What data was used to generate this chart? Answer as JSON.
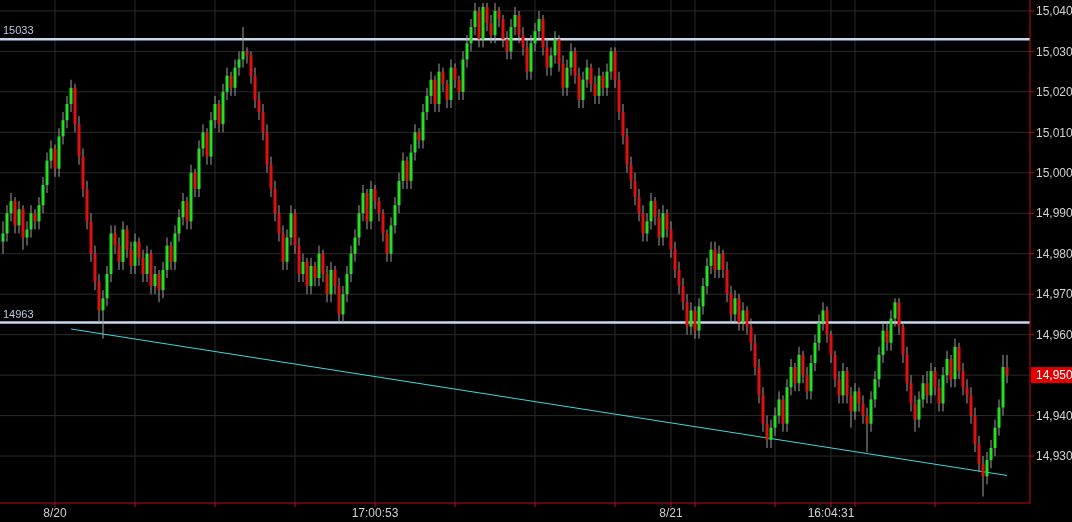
{
  "chart_data": {
    "type": "candlestick",
    "categories": [
      null,
      null,
      null,
      null,
      null,
      null,
      null,
      null,
      null,
      null,
      null,
      null,
      null,
      "8/20",
      null,
      null,
      null,
      null,
      null,
      null,
      null,
      null,
      null,
      null,
      null,
      null,
      null,
      null,
      null,
      null,
      null,
      null,
      null,
      null,
      null,
      null,
      null,
      null,
      null,
      null,
      null,
      null,
      null,
      null,
      null,
      null,
      null,
      null,
      null,
      null,
      null,
      null,
      null,
      null,
      null,
      null,
      null,
      null,
      null,
      null,
      null,
      null,
      null,
      null,
      null,
      null,
      null,
      null,
      null,
      null,
      null,
      null,
      null,
      null,
      null,
      null,
      null,
      null,
      null,
      null,
      null,
      null,
      null,
      null,
      null,
      null,
      null,
      null,
      null,
      null,
      null,
      null,
      null,
      "17:00:53",
      null,
      null,
      null,
      null,
      null,
      null,
      null,
      null,
      null,
      null,
      null,
      null,
      null,
      null,
      null,
      null,
      null,
      null,
      null,
      null,
      null,
      null,
      null,
      null,
      null,
      null,
      null,
      null,
      null,
      null,
      null,
      null,
      null,
      null,
      null,
      null,
      null,
      null,
      null,
      null,
      null,
      null,
      null,
      null,
      null,
      null,
      null,
      null,
      null,
      null,
      null,
      null,
      null,
      null,
      null,
      null,
      null,
      null,
      null,
      null,
      null,
      null,
      null,
      null,
      null,
      null,
      null,
      null,
      null,
      null,
      null,
      null,
      null,
      "8/21",
      null,
      null,
      null,
      null,
      null,
      null,
      null,
      null,
      null,
      null,
      null,
      null,
      null,
      null,
      null,
      null,
      null,
      null,
      null,
      null,
      null,
      null,
      null,
      null,
      null,
      null,
      null,
      null,
      null,
      null,
      null,
      null,
      null,
      null,
      null,
      null,
      null,
      null,
      null,
      "16:04:31",
      null,
      null,
      null,
      null,
      null,
      null,
      null,
      null,
      null,
      null,
      null,
      null,
      null,
      null,
      null,
      null,
      null,
      null,
      null,
      null,
      null,
      null,
      null,
      null,
      null,
      null,
      null,
      null,
      null,
      null,
      null,
      null,
      null,
      null,
      null,
      null,
      null,
      null,
      null,
      null,
      null,
      null,
      null,
      null
    ],
    "ohlc": [
      [
        14983,
        14988,
        14980,
        14985
      ],
      [
        14985,
        14992,
        14983,
        14990
      ],
      [
        14990,
        14995,
        14988,
        14993
      ],
      [
        14993,
        14994,
        14985,
        14987
      ],
      [
        14987,
        14993,
        14985,
        14991
      ],
      [
        14991,
        14992,
        14981,
        14984
      ],
      [
        14984,
        14988,
        14982,
        14986
      ],
      [
        14986,
        14992,
        14984,
        14990
      ],
      [
        14990,
        14991,
        14986,
        14988
      ],
      [
        14988,
        14994,
        14986,
        14992
      ],
      [
        14992,
        14999,
        14990,
        14997
      ],
      [
        14997,
        15005,
        14995,
        15003
      ],
      [
        15003,
        15008,
        15001,
        15006
      ],
      [
        15006,
        15007,
        14999,
        15001
      ],
      [
        15001,
        15011,
        14999,
        15009
      ],
      [
        15009,
        15015,
        15007,
        15013
      ],
      [
        15013,
        15019,
        15011,
        15017
      ],
      [
        15017,
        15023,
        15015,
        15021
      ],
      [
        15021,
        15022,
        15010,
        15012
      ],
      [
        15012,
        15014,
        15002,
        15004
      ],
      [
        15004,
        15006,
        14994,
        14996
      ],
      [
        14996,
        14998,
        14986,
        14988
      ],
      [
        14988,
        14990,
        14978,
        14980
      ],
      [
        14980,
        14982,
        14971,
        14973
      ],
      [
        14973,
        14975,
        14963,
        14966
      ],
      [
        14966,
        14971,
        14959,
        14969
      ],
      [
        14969,
        14977,
        14967,
        14975
      ],
      [
        14975,
        14987,
        14973,
        14985
      ],
      [
        14985,
        14987,
        14980,
        14982
      ],
      [
        14982,
        14984,
        14976,
        14978
      ],
      [
        14978,
        14988,
        14976,
        14986
      ],
      [
        14986,
        14987,
        14979,
        14981
      ],
      [
        14981,
        14983,
        14975,
        14977
      ],
      [
        14977,
        14985,
        14975,
        14983
      ],
      [
        14983,
        14984,
        14977,
        14979
      ],
      [
        14979,
        14981,
        14973,
        14975
      ],
      [
        14975,
        14982,
        14973,
        14980
      ],
      [
        14980,
        14981,
        14970,
        14972
      ],
      [
        14972,
        14977,
        14970,
        14975
      ],
      [
        14975,
        14976,
        14968,
        14971
      ],
      [
        14971,
        14978,
        14969,
        14976
      ],
      [
        14976,
        14984,
        14974,
        14982
      ],
      [
        14982,
        14983,
        14976,
        14978
      ],
      [
        14978,
        14987,
        14976,
        14985
      ],
      [
        14985,
        14991,
        14983,
        14989
      ],
      [
        14989,
        14995,
        14987,
        14993
      ],
      [
        14993,
        14994,
        14986,
        14988
      ],
      [
        14988,
        15002,
        14986,
        15000
      ],
      [
        15000,
        15001,
        14994,
        14996
      ],
      [
        14996,
        15008,
        14994,
        15006
      ],
      [
        15006,
        15012,
        15004,
        15010
      ],
      [
        15010,
        15011,
        15002,
        15004
      ],
      [
        15004,
        15015,
        15002,
        15013
      ],
      [
        15013,
        15019,
        15011,
        15017
      ],
      [
        15017,
        15018,
        15010,
        15012
      ],
      [
        15012,
        15022,
        15010,
        15020
      ],
      [
        15020,
        15026,
        15018,
        15024
      ],
      [
        15024,
        15025,
        15019,
        15021
      ],
      [
        15021,
        15028,
        15019,
        15026
      ],
      [
        15026,
        15030,
        15024,
        15028
      ],
      [
        15028,
        15036,
        15026,
        15030
      ],
      [
        15030,
        15031,
        15027,
        15029
      ],
      [
        15029,
        15030,
        15022,
        15024
      ],
      [
        15024,
        15026,
        15016,
        15018
      ],
      [
        15018,
        15020,
        15013,
        15015
      ],
      [
        15015,
        15017,
        15008,
        15010
      ],
      [
        15010,
        15012,
        15000,
        15002
      ],
      [
        15002,
        15004,
        14994,
        14996
      ],
      [
        14996,
        14998,
        14988,
        14990
      ],
      [
        14990,
        14992,
        14983,
        14985
      ],
      [
        14985,
        14987,
        14976,
        14978
      ],
      [
        14978,
        14986,
        14976,
        14984
      ],
      [
        14984,
        14992,
        14982,
        14990
      ],
      [
        14990,
        14991,
        14980,
        14982
      ],
      [
        14982,
        14984,
        14973,
        14975
      ],
      [
        14975,
        14980,
        14973,
        14978
      ],
      [
        14978,
        14979,
        14970,
        14972
      ],
      [
        14972,
        14979,
        14970,
        14977
      ],
      [
        14977,
        14978,
        14972,
        14974
      ],
      [
        14974,
        14982,
        14972,
        14980
      ],
      [
        14980,
        14981,
        14973,
        14975
      ],
      [
        14975,
        14977,
        14968,
        14970
      ],
      [
        14970,
        14978,
        14968,
        14976
      ],
      [
        14976,
        14977,
        14970,
        14972
      ],
      [
        14972,
        14974,
        14963,
        14965
      ],
      [
        14965,
        14972,
        14963,
        14970
      ],
      [
        14970,
        14977,
        14968,
        14975
      ],
      [
        14975,
        14982,
        14973,
        14980
      ],
      [
        14980,
        14986,
        14978,
        14984
      ],
      [
        14984,
        14992,
        14982,
        14990
      ],
      [
        14990,
        14997,
        14988,
        14995
      ],
      [
        14995,
        14996,
        14986,
        14988
      ],
      [
        14988,
        14998,
        14986,
        14996
      ],
      [
        14996,
        14997,
        14991,
        14993
      ],
      [
        14993,
        14994,
        14988,
        14990
      ],
      [
        14990,
        14991,
        14983,
        14985
      ],
      [
        14985,
        14986,
        14978,
        14980
      ],
      [
        14980,
        14989,
        14978,
        14987
      ],
      [
        14987,
        14994,
        14985,
        14992
      ],
      [
        14992,
        15000,
        14990,
        14998
      ],
      [
        14998,
        15005,
        14996,
        15003
      ],
      [
        15003,
        15004,
        14996,
        14998
      ],
      [
        14998,
        15007,
        14996,
        15005
      ],
      [
        15005,
        15012,
        15003,
        15010
      ],
      [
        15010,
        15011,
        15006,
        15008
      ],
      [
        15008,
        15017,
        15006,
        15015
      ],
      [
        15015,
        15021,
        15013,
        15019
      ],
      [
        15019,
        15025,
        15017,
        15023
      ],
      [
        15023,
        15024,
        15015,
        15017
      ],
      [
        15017,
        15027,
        15015,
        15025
      ],
      [
        15025,
        15026,
        15020,
        15022
      ],
      [
        15022,
        15023,
        15016,
        15018
      ],
      [
        15018,
        15028,
        15016,
        15026
      ],
      [
        15026,
        15027,
        15021,
        15023
      ],
      [
        15023,
        15024,
        15018,
        15020
      ],
      [
        15020,
        15030,
        15018,
        15028
      ],
      [
        15028,
        15034,
        15026,
        15032
      ],
      [
        15032,
        15038,
        15030,
        15036
      ],
      [
        15036,
        15042,
        15034,
        15040
      ],
      [
        15040,
        15041,
        15031,
        15033
      ],
      [
        15033,
        15042,
        15031,
        15041
      ],
      [
        15041,
        15042,
        15035,
        15037
      ],
      [
        15037,
        15039,
        15032,
        15034
      ],
      [
        15034,
        15042,
        15032,
        15040
      ],
      [
        15040,
        15041,
        15036,
        15038
      ],
      [
        15038,
        15039,
        15031,
        15033
      ],
      [
        15033,
        15035,
        15028,
        15030
      ],
      [
        15030,
        15038,
        15028,
        15036
      ],
      [
        15036,
        15041,
        15034,
        15039
      ],
      [
        15039,
        15040,
        15032,
        15034
      ],
      [
        15034,
        15036,
        15029,
        15031
      ],
      [
        15031,
        15033,
        15023,
        15025
      ],
      [
        15025,
        15034,
        15023,
        15032
      ],
      [
        15032,
        15037,
        15030,
        15035
      ],
      [
        15035,
        15040,
        15033,
        15038
      ],
      [
        15038,
        15039,
        15029,
        15031
      ],
      [
        15031,
        15033,
        15024,
        15026
      ],
      [
        15026,
        15031,
        15024,
        15029
      ],
      [
        15029,
        15035,
        15027,
        15033
      ],
      [
        15033,
        15034,
        15025,
        15027
      ],
      [
        15027,
        15029,
        15019,
        15021
      ],
      [
        15021,
        15028,
        15019,
        15026
      ],
      [
        15026,
        15032,
        15024,
        15030
      ],
      [
        15030,
        15031,
        15022,
        15024
      ],
      [
        15024,
        15026,
        15016,
        15018
      ],
      [
        15018,
        15025,
        15016,
        15023
      ],
      [
        15023,
        15028,
        15021,
        15026
      ],
      [
        15026,
        15027,
        15020,
        15022
      ],
      [
        15022,
        15024,
        15017,
        15019
      ],
      [
        15019,
        15026,
        15017,
        15024
      ],
      [
        15024,
        15025,
        15019,
        15021
      ],
      [
        15021,
        15027,
        15019,
        15025
      ],
      [
        15025,
        15031,
        15023,
        15030
      ],
      [
        15030,
        15031,
        15021,
        15023
      ],
      [
        15023,
        15025,
        15013,
        15015
      ],
      [
        15015,
        15017,
        15007,
        15009
      ],
      [
        15009,
        15011,
        15000,
        15002
      ],
      [
        15002,
        15004,
        14996,
        14998
      ],
      [
        14998,
        15000,
        14992,
        14994
      ],
      [
        14994,
        14996,
        14988,
        14990
      ],
      [
        14990,
        14992,
        14983,
        14985
      ],
      [
        14985,
        14990,
        14983,
        14988
      ],
      [
        14988,
        14995,
        14986,
        14993
      ],
      [
        14993,
        14994,
        14987,
        14989
      ],
      [
        14989,
        14991,
        14982,
        14984
      ],
      [
        14984,
        14992,
        14982,
        14990
      ],
      [
        14990,
        14991,
        14984,
        14986
      ],
      [
        14986,
        14988,
        14979,
        14981
      ],
      [
        14981,
        14983,
        14974,
        14976
      ],
      [
        14976,
        14978,
        14970,
        14972
      ],
      [
        14972,
        14974,
        14966,
        14968
      ],
      [
        14968,
        14970,
        14960,
        14962
      ],
      [
        14962,
        14968,
        14960,
        14966
      ],
      [
        14966,
        14967,
        14959,
        14961
      ],
      [
        14961,
        14969,
        14959,
        14967
      ],
      [
        14967,
        14974,
        14965,
        14972
      ],
      [
        14972,
        14979,
        14970,
        14977
      ],
      [
        14977,
        14983,
        14975,
        14981
      ],
      [
        14981,
        14983,
        14974,
        14976
      ],
      [
        14976,
        14982,
        14974,
        14980
      ],
      [
        14980,
        14981,
        14974,
        14976
      ],
      [
        14976,
        14978,
        14968,
        14970
      ],
      [
        14970,
        14972,
        14963,
        14965
      ],
      [
        14965,
        14971,
        14963,
        14969
      ],
      [
        14969,
        14970,
        14961,
        14963
      ],
      [
        14963,
        14968,
        14961,
        14966
      ],
      [
        14966,
        14967,
        14960,
        14962
      ],
      [
        14962,
        14964,
        14956,
        14958
      ],
      [
        14958,
        14960,
        14950,
        14952
      ],
      [
        14952,
        14954,
        14943,
        14945
      ],
      [
        14945,
        14947,
        14936,
        14938
      ],
      [
        14938,
        14940,
        14932,
        14934
      ],
      [
        14934,
        14939,
        14932,
        14937
      ],
      [
        14937,
        14942,
        14935,
        14940
      ],
      [
        14940,
        14946,
        14938,
        14944
      ],
      [
        14944,
        14945,
        14936,
        14938
      ],
      [
        14938,
        14949,
        14936,
        14947
      ],
      [
        14947,
        14954,
        14945,
        14952
      ],
      [
        14952,
        14953,
        14946,
        14948
      ],
      [
        14948,
        14957,
        14946,
        14955
      ],
      [
        14955,
        14956,
        14948,
        14950
      ],
      [
        14950,
        14952,
        14944,
        14946
      ],
      [
        14946,
        14955,
        14944,
        14953
      ],
      [
        14953,
        14960,
        14951,
        14958
      ],
      [
        14958,
        14965,
        14956,
        14963
      ],
      [
        14963,
        14968,
        14961,
        14966
      ],
      [
        14966,
        14967,
        14958,
        14960
      ],
      [
        14960,
        14961,
        14953,
        14955
      ],
      [
        14955,
        14956,
        14947,
        14949
      ],
      [
        14949,
        14951,
        14943,
        14945
      ],
      [
        14945,
        14953,
        14943,
        14951
      ],
      [
        14951,
        14952,
        14943,
        14945
      ],
      [
        14945,
        14947,
        14937,
        14941
      ],
      [
        14941,
        14948,
        14939,
        14946
      ],
      [
        14946,
        14947,
        14941,
        14943
      ],
      [
        14943,
        14945,
        14938,
        14940
      ],
      [
        14940,
        14942,
        14931,
        14938
      ],
      [
        14938,
        14946,
        14936,
        14944
      ],
      [
        14944,
        14951,
        14942,
        14949
      ],
      [
        14949,
        14957,
        14947,
        14955
      ],
      [
        14955,
        14963,
        14953,
        14961
      ],
      [
        14961,
        14963,
        14956,
        14958
      ],
      [
        14958,
        14966,
        14956,
        14964
      ],
      [
        14964,
        14969,
        14962,
        14968
      ],
      [
        14968,
        14969,
        14960,
        14962
      ],
      [
        14962,
        14963,
        14953,
        14955
      ],
      [
        14955,
        14957,
        14946,
        14948
      ],
      [
        14948,
        14950,
        14941,
        14943
      ],
      [
        14943,
        14945,
        14936,
        14939
      ],
      [
        14939,
        14946,
        14937,
        14944
      ],
      [
        14944,
        14950,
        14942,
        14948
      ],
      [
        14948,
        14951,
        14943,
        14945
      ],
      [
        14945,
        14953,
        14943,
        14951
      ],
      [
        14951,
        14952,
        14945,
        14947
      ],
      [
        14947,
        14949,
        14941,
        14943
      ],
      [
        14943,
        14952,
        14941,
        14950
      ],
      [
        14950,
        14956,
        14948,
        14954
      ],
      [
        14954,
        14955,
        14947,
        14949
      ],
      [
        14949,
        14959,
        14947,
        14957
      ],
      [
        14957,
        14958,
        14949,
        14951
      ],
      [
        14951,
        14953,
        14945,
        14947
      ],
      [
        14947,
        14949,
        14943,
        14945
      ],
      [
        14945,
        14947,
        14938,
        14940
      ],
      [
        14940,
        14942,
        14931,
        14933
      ],
      [
        14933,
        14935,
        14926,
        14928
      ],
      [
        14928,
        14930,
        14920,
        14925
      ],
      [
        14925,
        14931,
        14923,
        14929
      ],
      [
        14929,
        14934,
        14927,
        14932
      ],
      [
        14932,
        14939,
        14930,
        14937
      ],
      [
        14937,
        14944,
        14935,
        14942
      ],
      [
        14942,
        14955,
        14940,
        14952
      ],
      [
        14952,
        14955,
        14948,
        14950
      ]
    ],
    "series": [
      {
        "type": "line",
        "color": "#3ed8e0",
        "values": [
          null,
          null,
          null,
          null,
          null,
          null,
          null,
          null,
          null,
          null,
          null,
          null,
          null,
          null,
          null,
          null,
          null,
          14961.4,
          null,
          null,
          null,
          null,
          null,
          null,
          null,
          null,
          null,
          null,
          null,
          null,
          null,
          null,
          null,
          null,
          null,
          null,
          null,
          null,
          null,
          null,
          null,
          null,
          null,
          null,
          null,
          null,
          null,
          null,
          null,
          null,
          null,
          null,
          null,
          null,
          null,
          null,
          null,
          null,
          null,
          null,
          null,
          null,
          null,
          null,
          null,
          null,
          null,
          null,
          null,
          null,
          null,
          null,
          null,
          null,
          null,
          null,
          null,
          null,
          null,
          null,
          null,
          null,
          null,
          null,
          null,
          null,
          null,
          null,
          null,
          null,
          null,
          null,
          null,
          null,
          null,
          null,
          null,
          null,
          null,
          null,
          null,
          null,
          null,
          null,
          null,
          null,
          null,
          null,
          null,
          null,
          null,
          null,
          null,
          null,
          null,
          null,
          null,
          null,
          null,
          null,
          null,
          null,
          null,
          null,
          null,
          null,
          null,
          null,
          null,
          null,
          null,
          null,
          null,
          null,
          null,
          null,
          null,
          null,
          null,
          null,
          null,
          null,
          null,
          null,
          null,
          null,
          null,
          null,
          null,
          null,
          null,
          null,
          null,
          null,
          null,
          null,
          null,
          null,
          null,
          null,
          null,
          null,
          null,
          null,
          null,
          null,
          null,
          null,
          null,
          null,
          null,
          null,
          null,
          null,
          null,
          null,
          null,
          null,
          null,
          null,
          null,
          null,
          null,
          null,
          null,
          null,
          null,
          null,
          null,
          null,
          null,
          null,
          null,
          null,
          null,
          null,
          null,
          null,
          null,
          null,
          null,
          null,
          null,
          null,
          null,
          null,
          null,
          null,
          null,
          null,
          null,
          null,
          null,
          null,
          null,
          null,
          null,
          null,
          null,
          null,
          null,
          null,
          null,
          null,
          null,
          null,
          null,
          null,
          null,
          null,
          null,
          null,
          null,
          null,
          null,
          null,
          null,
          null,
          null,
          null,
          null,
          null,
          null,
          null,
          null,
          null,
          null,
          null,
          null,
          null,
          null,
          14925.2
        ]
      }
    ],
    "ylim": [
      14918.4,
      15042.7
    ],
    "yticks": [
      {
        "value": 14930,
        "label": "14,930"
      },
      {
        "value": 14940,
        "label": "14,940"
      },
      {
        "value": 14950,
        "label": null
      },
      {
        "value": 14960,
        "label": "14,960"
      },
      {
        "value": 14970,
        "label": "14,970"
      },
      {
        "value": 14980,
        "label": "14,980"
      },
      {
        "value": 14990,
        "label": "14,990"
      },
      {
        "value": 15000,
        "label": "15,000"
      },
      {
        "value": 15010,
        "label": "15,010"
      },
      {
        "value": 15020,
        "label": "15,020"
      },
      {
        "value": 15030,
        "label": "15,030"
      },
      {
        "value": 15040,
        "label": "15,040"
      }
    ],
    "ref_lines": [
      {
        "axis": "y",
        "value": 15033,
        "label": "15033",
        "color": "#c8d8f0"
      },
      {
        "axis": "y",
        "value": 14963,
        "label": "14963",
        "color": "#c8d8f0"
      }
    ],
    "annotations": [
      "14,950"
    ],
    "grid": true
  }
}
